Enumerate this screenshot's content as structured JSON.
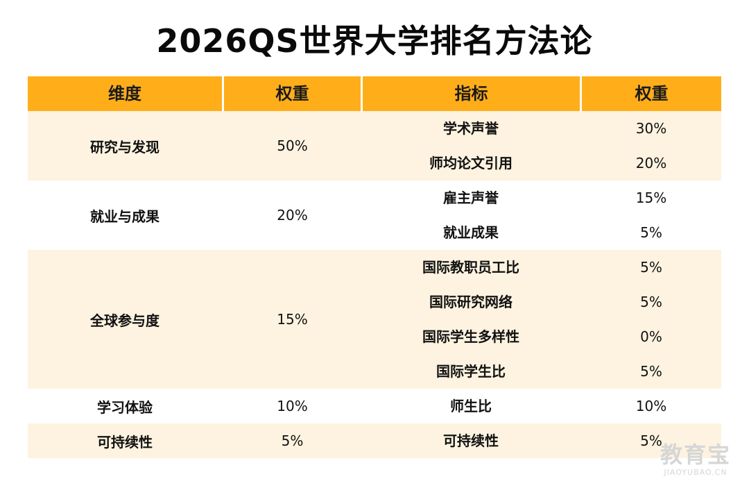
{
  "title": "2026QS世界大学排名方法论",
  "colors": {
    "header_bg": "#ffae1a",
    "band_bg": "#fdf3e0",
    "text": "#111111"
  },
  "table": {
    "headers": [
      "维度",
      "权重",
      "指标",
      "权重"
    ],
    "groups": [
      {
        "dimension": "研究与发现",
        "weight": "50%",
        "indicators": [
          {
            "name": "学术声誉",
            "weight": "30%"
          },
          {
            "name": "师均论文引用",
            "weight": "20%"
          }
        ]
      },
      {
        "dimension": "就业与成果",
        "weight": "20%",
        "indicators": [
          {
            "name": "雇主声誉",
            "weight": "15%"
          },
          {
            "name": "就业成果",
            "weight": "5%"
          }
        ]
      },
      {
        "dimension": "全球参与度",
        "weight": "15%",
        "indicators": [
          {
            "name": "国际教职员工比",
            "weight": "5%"
          },
          {
            "name": "国际研究网络",
            "weight": "5%"
          },
          {
            "name": "国际学生多样性",
            "weight": "0%"
          },
          {
            "name": "国际学生比",
            "weight": "5%"
          }
        ]
      },
      {
        "dimension": "学习体验",
        "weight": "10%",
        "indicators": [
          {
            "name": "师生比",
            "weight": "10%"
          }
        ]
      },
      {
        "dimension": "可持续性",
        "weight": "5%",
        "indicators": [
          {
            "name": "可持续性",
            "weight": "5%"
          }
        ]
      }
    ]
  },
  "watermark": {
    "main": "教育宝",
    "sub": "JIAOYUBAO.CN"
  }
}
